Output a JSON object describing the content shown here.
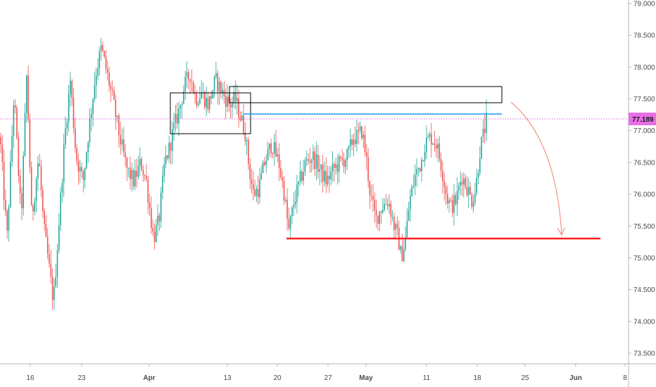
{
  "chart_data": {
    "type": "candlestick",
    "y_axis": {
      "range": [
        73.25,
        79.0
      ],
      "ticks": [
        "79.000",
        "78.500",
        "78.000",
        "77.500",
        "77.000",
        "76.500",
        "76.000",
        "75.500",
        "75.000",
        "74.500",
        "74.000",
        "73.500"
      ],
      "tick_values": [
        79.0,
        78.5,
        78.0,
        77.5,
        77.0,
        76.5,
        76.0,
        75.5,
        75.0,
        74.5,
        74.0,
        73.5
      ]
    },
    "x_axis": {
      "labels": [
        "16",
        "23",
        "Apr",
        "13",
        "20",
        "27",
        "May",
        "11",
        "18",
        "25",
        "Jun",
        "8"
      ],
      "bold_labels": [
        "Apr",
        "May",
        "Jun"
      ]
    },
    "current_price": "77.189",
    "current_price_value": 77.189,
    "colors": {
      "up": "#26a69a",
      "down": "#ef5350",
      "support_line": "#ff1e1e",
      "resistance_line": "#2196f3",
      "price_dotted": "#cc33cc",
      "price_badge": "#e86ee6",
      "zone_border": "#000000",
      "arrow": "#f08070"
    },
    "price_path": [
      [
        0,
        76.9
      ],
      [
        10,
        75.3
      ],
      [
        20,
        77.6
      ],
      [
        30,
        75.6
      ],
      [
        38,
        77.9
      ],
      [
        45,
        75.6
      ],
      [
        55,
        76.6
      ],
      [
        62,
        75.5
      ],
      [
        68,
        75.0
      ],
      [
        76,
        74.3
      ],
      [
        84,
        75.6
      ],
      [
        92,
        76.9
      ],
      [
        100,
        77.8
      ],
      [
        108,
        76.6
      ],
      [
        118,
        76.2
      ],
      [
        126,
        77.0
      ],
      [
        136,
        77.9
      ],
      [
        144,
        78.3
      ],
      [
        152,
        77.9
      ],
      [
        160,
        77.5
      ],
      [
        170,
        76.9
      ],
      [
        180,
        76.4
      ],
      [
        190,
        76.2
      ],
      [
        200,
        76.5
      ],
      [
        208,
        76.2
      ],
      [
        218,
        75.3
      ],
      [
        226,
        75.6
      ],
      [
        234,
        76.5
      ],
      [
        240,
        76.7
      ],
      [
        246,
        77.0
      ],
      [
        254,
        77.3
      ],
      [
        262,
        77.7
      ],
      [
        270,
        77.9
      ],
      [
        278,
        77.5
      ],
      [
        286,
        77.6
      ],
      [
        296,
        77.4
      ],
      [
        306,
        77.8
      ],
      [
        316,
        77.6
      ],
      [
        326,
        77.4
      ],
      [
        334,
        77.5
      ],
      [
        342,
        77.2
      ],
      [
        348,
        77.0
      ],
      [
        354,
        76.4
      ],
      [
        360,
        76.0
      ],
      [
        368,
        76.1
      ],
      [
        376,
        76.5
      ],
      [
        386,
        76.8
      ],
      [
        396,
        76.5
      ],
      [
        404,
        76.0
      ],
      [
        410,
        75.4
      ],
      [
        418,
        75.9
      ],
      [
        426,
        76.2
      ],
      [
        434,
        76.5
      ],
      [
        444,
        76.6
      ],
      [
        454,
        76.4
      ],
      [
        464,
        76.2
      ],
      [
        474,
        76.4
      ],
      [
        484,
        76.5
      ],
      [
        494,
        76.6
      ],
      [
        502,
        76.9
      ],
      [
        508,
        76.9
      ],
      [
        514,
        77.0
      ],
      [
        520,
        76.6
      ],
      [
        526,
        76.0
      ],
      [
        534,
        75.6
      ],
      [
        542,
        75.8
      ],
      [
        552,
        75.9
      ],
      [
        560,
        75.5
      ],
      [
        566,
        75.3
      ],
      [
        570,
        75.0
      ],
      [
        576,
        75.3
      ],
      [
        582,
        75.9
      ],
      [
        590,
        76.3
      ],
      [
        598,
        76.5
      ],
      [
        604,
        76.8
      ],
      [
        612,
        76.9
      ],
      [
        620,
        76.8
      ],
      [
        628,
        76.4
      ],
      [
        634,
        76.0
      ],
      [
        640,
        75.8
      ],
      [
        648,
        75.9
      ],
      [
        656,
        76.3
      ],
      [
        664,
        76.1
      ],
      [
        670,
        75.9
      ],
      [
        676,
        76.1
      ],
      [
        682,
        76.7
      ],
      [
        688,
        77.0
      ],
      [
        692,
        77.2
      ]
    ]
  }
}
